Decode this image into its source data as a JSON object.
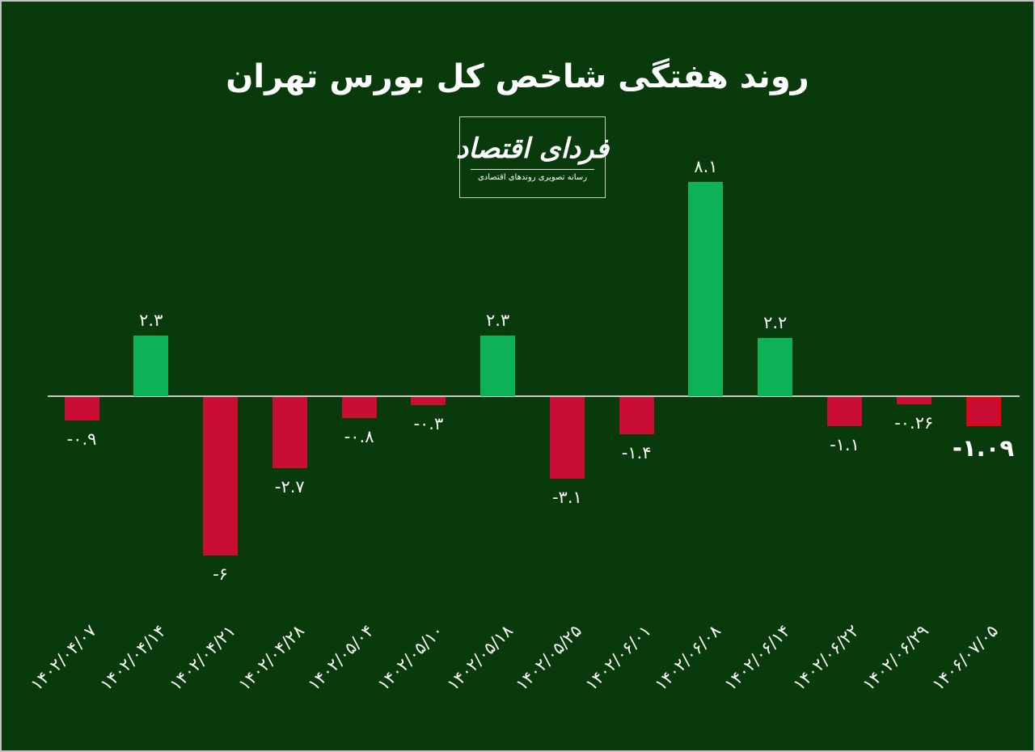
{
  "title": "روند هفتگی شاخص کل بورس تهران",
  "logo": {
    "wordmark": "فردای اقتصاد",
    "tagline": "رسانه تصویری روندهای اقتصادی"
  },
  "colors": {
    "background": "#083a0b",
    "positive_bar": "#0db156",
    "negative_bar": "#c90d35",
    "highlight_border": "#ec0010",
    "axis_line": "#c9c9c9",
    "text": "#ffffff"
  },
  "chart_data": {
    "type": "bar",
    "title": "روند هفتگی شاخص کل بورس تهران",
    "xlabel": "",
    "ylabel": "",
    "ylim": [
      -8.5,
      8.5
    ],
    "grid": false,
    "legend": null,
    "categories": [
      "1402/04/07",
      "1402/04/14",
      "1402/04/21",
      "1402/04/28",
      "1402/05/04",
      "1402/05/10",
      "1402/05/18",
      "1402/05/25",
      "1402/06/01",
      "1402/06/08",
      "1402/06/14",
      "1402/06/22",
      "1402/06/29",
      "1406/07/05"
    ],
    "categories_display": [
      "۱۴۰۲/۰۴/۰۷",
      "۱۴۰۲/۰۴/۱۴",
      "۱۴۰۲/۰۴/۲۱",
      "۱۴۰۲/۰۴/۲۸",
      "۱۴۰۲/۰۵/۰۴",
      "۱۴۰۲/۰۵/۱۰",
      "۱۴۰۲/۰۵/۱۸",
      "۱۴۰۲/۰۵/۲۵",
      "۱۴۰۲/۰۶/۰۱",
      "۱۴۰۲/۰۶/۰۸",
      "۱۴۰۲/۰۶/۱۴",
      "۱۴۰۲/۰۶/۲۲",
      "۱۴۰۲/۰۶/۲۹",
      "۱۴۰۶/۰۷/۰۵"
    ],
    "values": [
      -0.9,
      2.3,
      -6,
      -2.7,
      -0.8,
      -0.3,
      2.3,
      -3.1,
      -1.4,
      8.1,
      2.2,
      -1.1,
      -0.26,
      -1.09
    ],
    "value_labels": [
      "-۰.۹",
      "۲.۳",
      "-۶",
      "-۲.۷",
      "-۰.۸",
      "-۰.۳",
      "۲.۳",
      "-۳.۱",
      "-۱.۴",
      "۸.۱",
      "۲.۲",
      "-۱.۱",
      "-۰.۲۶",
      "-۱.۰۹"
    ],
    "highlighted_index": 13
  }
}
